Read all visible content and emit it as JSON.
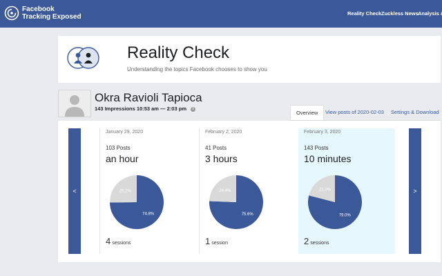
{
  "header": {
    "app_name_line1": "Facebook",
    "app_name_line2": "Tracking Exposed",
    "nav": [
      "Reality Check",
      "Zuckless News",
      "Analysis & E"
    ],
    "title": "Reality Check",
    "subtitle": "Understanding the topics Facebook chooses to show you"
  },
  "profile": {
    "name": "Okra Ravioli Tapioca",
    "meta": "143 Impressions 10:53 am — 2:03 pm",
    "info_icon": "i"
  },
  "tabs": [
    "Overview",
    "View posts of 2020-02-03",
    "Settings & Download"
  ],
  "controls": {
    "prev_label": "<",
    "next_label": ">"
  },
  "days": [
    {
      "date": "January 29, 2020",
      "posts": "103 Posts",
      "duration": "an hour",
      "sessions_count": "4",
      "sessions_label": "sessions",
      "pie": {
        "small_pct": 25.2,
        "large_pct": 74.8,
        "small_label": "25.2%",
        "large_label": "74.8%"
      }
    },
    {
      "date": "February 2, 2020",
      "posts": "41 Posts",
      "duration": "3 hours",
      "sessions_count": "1",
      "sessions_label": "session",
      "pie": {
        "small_pct": 24.4,
        "large_pct": 75.6,
        "small_label": "24.4%",
        "large_label": "75.6%"
      }
    },
    {
      "date": "February 3, 2020",
      "posts": "143 Posts",
      "duration": "10 minutes",
      "sessions_count": "2",
      "sessions_label": "sessions",
      "pie": {
        "small_pct": 21.0,
        "large_pct": 79.0,
        "small_label": "21.0%",
        "large_label": "79.0%"
      }
    }
  ],
  "colors": {
    "brand": "#3b5998",
    "pie_large": "#3b5998",
    "pie_small": "#d9d9d9",
    "highlight": "#e6f7fd"
  }
}
